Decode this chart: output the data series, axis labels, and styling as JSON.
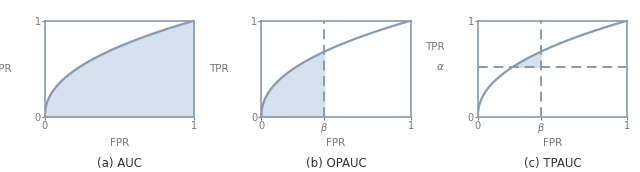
{
  "curve_color": "#8a9aaa",
  "fill_color": "#c8d8e8",
  "fill_alpha": 0.75,
  "dashed_color": "#8a9aaa",
  "border_color": "#8a9aaa",
  "background": "#ffffff",
  "beta": 0.42,
  "alpha_val": 0.52,
  "titles": [
    "(a) AUC",
    "(b) OPAUC",
    "(c) TPAUC"
  ],
  "tick_label_color": "#777777",
  "title_color": "#333333",
  "fig_bg": "#ffffff",
  "curve_power": 0.45,
  "lw": 1.6,
  "title_fontsize": 8.5,
  "label_fontsize": 7.5,
  "tick_fontsize": 7.0
}
